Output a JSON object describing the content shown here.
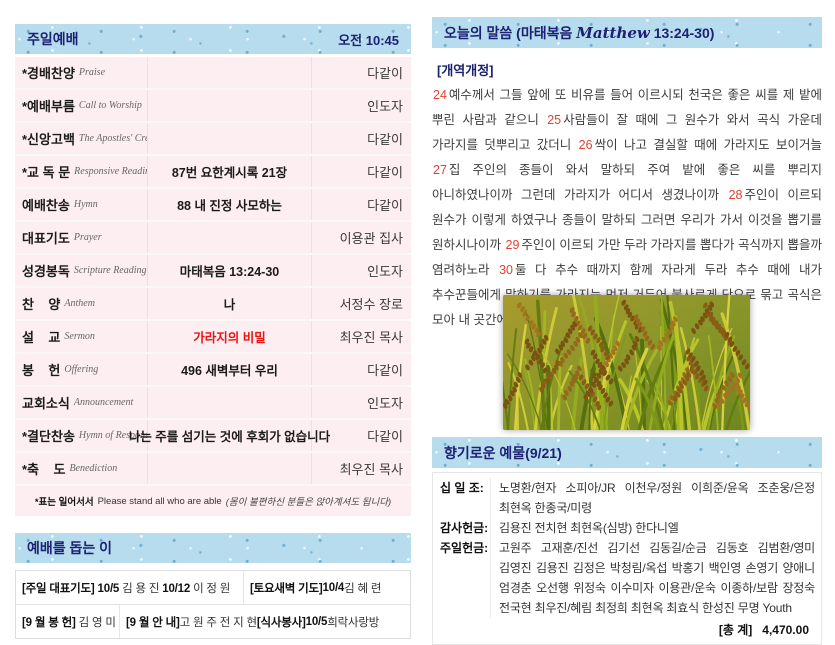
{
  "worship": {
    "title": "주일예배",
    "time": "오전 10:45",
    "rows": [
      {
        "kr": "*경배찬양",
        "en": "Praise",
        "center": "",
        "right": "다같이",
        "red": false
      },
      {
        "kr": "*예배부름",
        "en": "Call to Worship",
        "center": "",
        "right": "인도자",
        "red": false
      },
      {
        "kr": "*신앙고백",
        "en": "The Apostles' Creed",
        "center": "",
        "right": "다같이",
        "red": false
      },
      {
        "kr": "*교 독 문",
        "en": "Responsive Reading",
        "center": "87번 요한계시록 21장",
        "right": "다같이",
        "red": false
      },
      {
        "kr": "예배찬송",
        "en": "Hymn",
        "center": "88 내 진정 사모하는",
        "right": "다같이",
        "red": false
      },
      {
        "kr": "대표기도",
        "en": "Prayer",
        "center": "",
        "right": "이용관 집사",
        "red": false
      },
      {
        "kr": "성경봉독",
        "en": "Scripture Reading",
        "center": "마태복음 13:24-30",
        "right": "인도자",
        "red": false
      },
      {
        "kr": "찬    양",
        "en": "Anthem",
        "center": "나",
        "right": "서정수 장로",
        "red": false
      },
      {
        "kr": "설    교",
        "en": "Sermon",
        "center": "가라지의 비밀",
        "right": "최우진 목사",
        "red": true
      },
      {
        "kr": "봉    헌",
        "en": "Offering",
        "center": "496 새벽부터 우리",
        "right": "다같이",
        "red": false
      },
      {
        "kr": "교회소식",
        "en": "Announcement",
        "center": "",
        "right": "인도자",
        "red": false
      },
      {
        "kr": "*결단찬송",
        "en": "Hymn of Response",
        "center": "나는 주를 섬기는 것에 후회가 없습니다",
        "right": "다같이",
        "red": false
      },
      {
        "kr": "*축    도",
        "en": "Benediction",
        "center": "",
        "right": "최우진 목사",
        "red": false
      }
    ],
    "stand_note": {
      "bold": "*표는 일어서서",
      "normal": "Please stand all who are able",
      "italic": "(몸이 불편하신 분들은 앉아계셔도 됩니다)"
    }
  },
  "helpers": {
    "title": "예배를 돕는 이",
    "rows": [
      {
        "cells": [
          {
            "segments": [
              {
                "b": true,
                "t": "[주일 대표기도]"
              },
              {
                "b": true,
                "t": "10/5"
              },
              {
                "b": false,
                "t": "김 용 진"
              },
              {
                "b": true,
                "t": "10/12"
              },
              {
                "b": false,
                "t": "이 정 원"
              }
            ]
          },
          {
            "segments": [
              {
                "b": true,
                "t": "[토요새벽 기도]"
              },
              {
                "b": true,
                "t": "10/4"
              },
              {
                "b": false,
                "t": "김 혜 련"
              }
            ]
          }
        ]
      },
      {
        "cells": [
          {
            "segments": [
              {
                "b": true,
                "t": "[9 월 봉 헌]"
              },
              {
                "b": false,
                "t": "김 영 미"
              }
            ]
          },
          {
            "segments": [
              {
                "b": true,
                "t": "[9 월 안 내]"
              },
              {
                "b": false,
                "t": "고 원 주  전 지 현"
              },
              {
                "b": true,
                "t": "[식사봉사]"
              },
              {
                "b": true,
                "t": "10/5"
              },
              {
                "b": false,
                "t": "희락사랑방"
              }
            ]
          }
        ]
      }
    ]
  },
  "word": {
    "title_prefix": "오늘의 말씀 (마태복음 ",
    "title_script": "Matthew",
    "title_suffix": " 13:24-30)",
    "version": "[개역개정]",
    "verses": [
      {
        "v": "24",
        "t": "예수께서 그들 앞에 또 비유를 들어 이르시되 천국은 좋은 씨를 제 밭에 뿌린 사람과 같으니"
      },
      {
        "v": "25",
        "t": "사람들이 잘 때에 그 원수가 와서 곡식 가운데 가라지를 덧뿌리고 갔더니"
      },
      {
        "v": "26",
        "t": "싹이 나고 결실할 때에 가라지도 보이거늘"
      },
      {
        "v": "27",
        "t": "집 주인의 종들이 와서 말하되 주여 밭에 좋은 씨를 뿌리지 아니하였나이까 그런데 가라지가 어디서 생겼나이까"
      },
      {
        "v": "28",
        "t": "주인이 이르되 원수가 이렇게 하였구나 종들이 말하되 그러면 우리가 가서 이것을 뽑기를 원하시나이까"
      },
      {
        "v": "29",
        "t": "주인이 이르되 가만 두라 가라지를 뽑다가 곡식까지 뽑을까 염려하노라"
      },
      {
        "v": "30",
        "t": "둘 다 추수 때까지 함께 자라게 두라 추수 때에 내가 추수꾼들에게 말하기를 가라지는 먼저 거두어 불사르게 단으로 묶고 곡식은 모아 내 곳간에 넣으라 하리라"
      }
    ],
    "photo_subject": "ripe-rice-field"
  },
  "offering": {
    "title": "향기로운 예물(9/21)",
    "rows": [
      {
        "label": "십 일 조:",
        "value": "노명환/현자 소피아/JR 이천우/정원 이희준/윤옥 조춘웅/은정 최현옥 한종국/미령"
      },
      {
        "label": "감사헌금:",
        "value": "김용진 전치현 최현옥(심방) 한다니엘"
      },
      {
        "label": "주일헌금:",
        "value": "고원주 고재훈/진선 김기선 김동길/순금 김동호 김범환/영미 김영진 김용진 김정은 박청림/옥섭 박홍기 백인영 손영기 양애니 엄경춘 오선행 위정숙 이수미자 이용관/운숙 이종하/보람 장정숙 전국현 최우진/혜림 최정희 최현옥 최효식 한성진 무명 Youth"
      }
    ],
    "total_label": "[총 계]",
    "total_value": "4,470.00"
  },
  "colors": {
    "band_bg": "#b6dcee",
    "band_text": "#1c2173",
    "row_bg": "#fdeef2",
    "verse_number": "#e04232",
    "sermon_title": "#ee1111"
  }
}
